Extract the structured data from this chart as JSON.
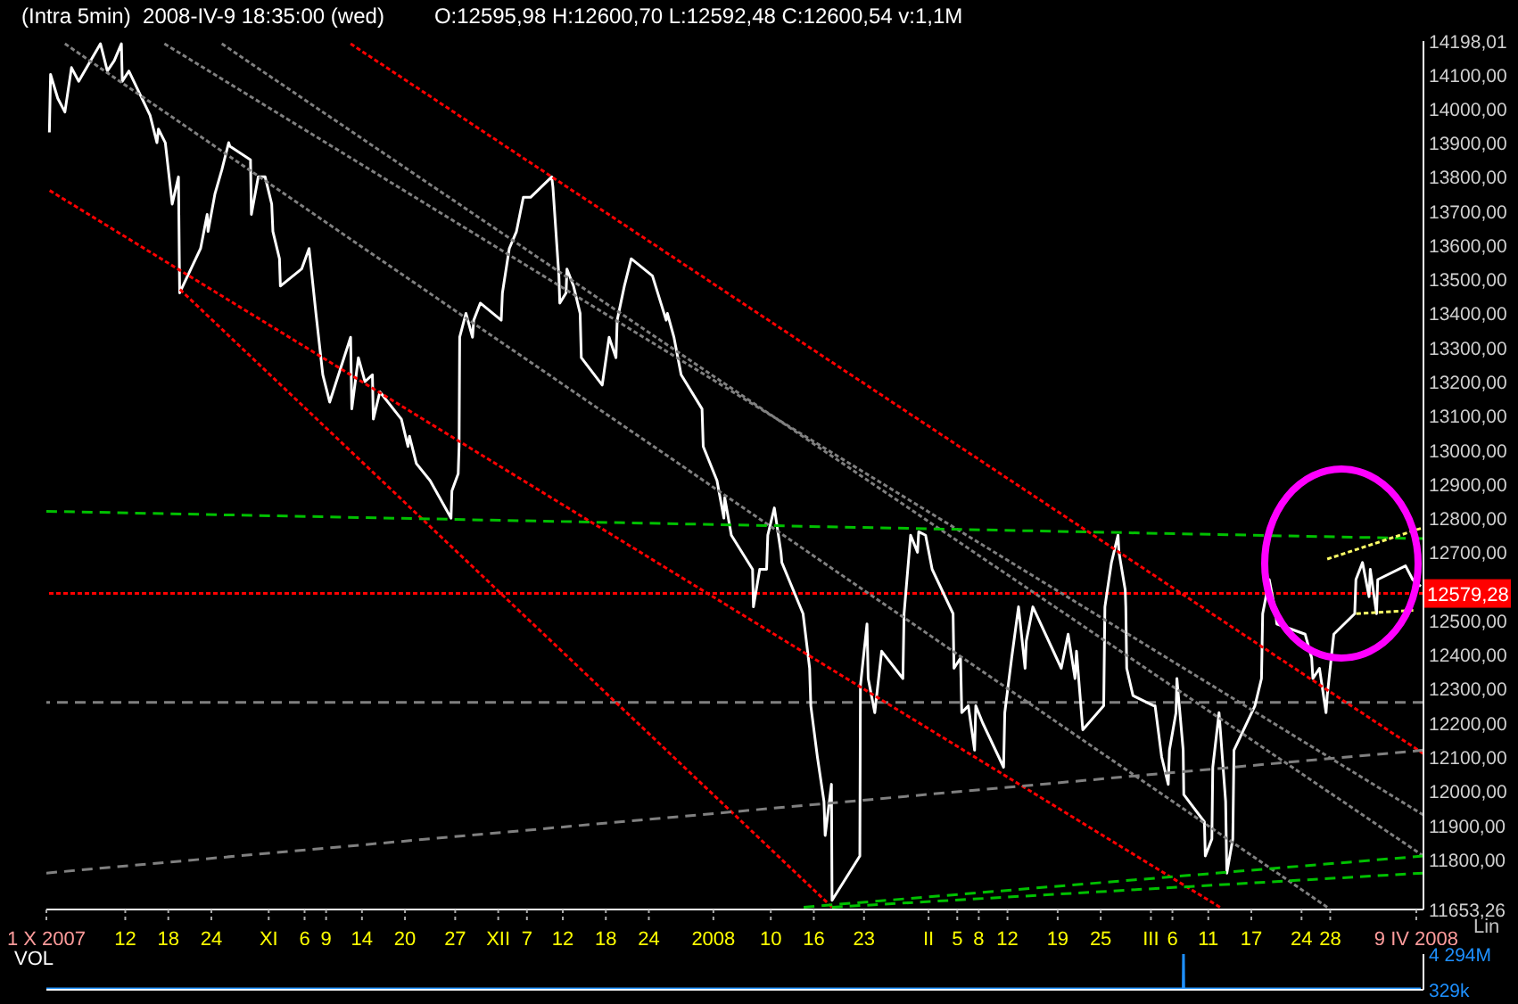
{
  "chart_data": [
    {
      "type": "line",
      "title": "(Intra 5min)  2008-IV-9 18:35:00 (wed)",
      "subtitle": "O:12595,98 H:12600,70 L:12592,48 C:12600,54 v:1,1M",
      "annotations": [
        "Lin"
      ],
      "xlim": [
        "2007-10-01",
        "2008-04-10"
      ],
      "ylim": [
        11653.26,
        14198.01
      ],
      "xticks": [
        {
          "value": "2007-10-01",
          "label": "1 X 2007"
        },
        {
          "value": "2007-10-12",
          "label": "12"
        },
        {
          "value": "2007-10-18",
          "label": "18"
        },
        {
          "value": "2007-10-24",
          "label": "24"
        },
        {
          "value": "2007-11-01",
          "label": "XI"
        },
        {
          "value": "2007-11-06",
          "label": "6"
        },
        {
          "value": "2007-11-09",
          "label": "9"
        },
        {
          "value": "2007-11-14",
          "label": "14"
        },
        {
          "value": "2007-11-20",
          "label": "20"
        },
        {
          "value": "2007-11-27",
          "label": "27"
        },
        {
          "value": "2007-12-03",
          "label": "XII"
        },
        {
          "value": "2007-12-07",
          "label": "7"
        },
        {
          "value": "2007-12-12",
          "label": "12"
        },
        {
          "value": "2007-12-18",
          "label": "18"
        },
        {
          "value": "2007-12-24",
          "label": "24"
        },
        {
          "value": "2008-01-02",
          "label": "2008"
        },
        {
          "value": "2008-01-10",
          "label": "10"
        },
        {
          "value": "2008-01-16",
          "label": "16"
        },
        {
          "value": "2008-01-23",
          "label": "23"
        },
        {
          "value": "2008-02-01",
          "label": "II"
        },
        {
          "value": "2008-02-05",
          "label": "5"
        },
        {
          "value": "2008-02-08",
          "label": "8"
        },
        {
          "value": "2008-02-12",
          "label": "12"
        },
        {
          "value": "2008-02-19",
          "label": "19"
        },
        {
          "value": "2008-02-25",
          "label": "25"
        },
        {
          "value": "2008-03-03",
          "label": "III"
        },
        {
          "value": "2008-03-06",
          "label": "6"
        },
        {
          "value": "2008-03-11",
          "label": "11"
        },
        {
          "value": "2008-03-17",
          "label": "17"
        },
        {
          "value": "2008-03-24",
          "label": "24"
        },
        {
          "value": "2008-03-28",
          "label": "28"
        },
        {
          "value": "2008-04-09",
          "label": "9 IV 2008"
        }
      ],
      "yticks": [
        {
          "value": 14198.01,
          "label": "14198,01"
        },
        {
          "value": 14100,
          "label": "14100,00"
        },
        {
          "value": 14000,
          "label": "14000,00"
        },
        {
          "value": 13900,
          "label": "13900,00"
        },
        {
          "value": 13800,
          "label": "13800,00"
        },
        {
          "value": 13700,
          "label": "13700,00"
        },
        {
          "value": 13600,
          "label": "13600,00"
        },
        {
          "value": 13500,
          "label": "13500,00"
        },
        {
          "value": 13400,
          "label": "13400,00"
        },
        {
          "value": 13300,
          "label": "13300,00"
        },
        {
          "value": 13200,
          "label": "13200,00"
        },
        {
          "value": 13100,
          "label": "13100,00"
        },
        {
          "value": 13000,
          "label": "13000,00"
        },
        {
          "value": 12900,
          "label": "12900,00"
        },
        {
          "value": 12800,
          "label": "12800,00"
        },
        {
          "value": 12700,
          "label": "12700,00"
        },
        {
          "value": 12500,
          "label": "12500,00"
        },
        {
          "value": 12400,
          "label": "12400,00"
        },
        {
          "value": 12300,
          "label": "12300,00"
        },
        {
          "value": 12200,
          "label": "12200,00"
        },
        {
          "value": 12100,
          "label": "12100,00"
        },
        {
          "value": 12000,
          "label": "12000,00"
        },
        {
          "value": 11900,
          "label": "11900,00"
        },
        {
          "value": 11800,
          "label": "11800,00"
        },
        {
          "value": 11653.26,
          "label": "11653,26"
        }
      ],
      "ref_lines": [
        {
          "axis": "y",
          "value": 12579.28,
          "label": "12579,28",
          "color": "#ff0000",
          "line_style": "dotted"
        },
        {
          "axis": "y",
          "value": 12260,
          "color": "#808080",
          "line_style": "dashed"
        }
      ],
      "series": [
        {
          "color": "#ffffff",
          "line_style": "solid",
          "x": [
            "2007-10-01T10:00",
            "2007-10-01T14:00",
            "2007-10-02T14:00",
            "2007-10-03T14:00",
            "2007-10-04T12:00",
            "2007-10-05T12:00",
            "2007-10-08T13:00",
            "2007-10-09T12:00",
            "2007-10-10T11:00",
            "2007-10-11T11:00",
            "2007-10-11T14:00",
            "2007-10-12T12:00",
            "2007-10-15T11:00",
            "2007-10-16T10:00",
            "2007-10-16T15:00",
            "2007-10-17T14:00",
            "2007-10-18T13:00",
            "2007-10-19T10:00",
            "2007-10-19T14:00",
            "2007-10-22T12:00",
            "2007-10-23T10:00",
            "2007-10-23T13:00",
            "2007-10-24T12:00",
            "2007-10-25T11:00",
            "2007-10-26T10:00",
            "2007-10-26T14:00",
            "2007-10-29T11:00",
            "2007-10-29T14:00",
            "2007-10-30T13:00",
            "2007-10-31T12:00",
            "2007-11-01T10:00",
            "2007-11-01T14:00",
            "2007-11-02T12:00",
            "2007-11-02T15:00",
            "2007-11-05T14:00",
            "2007-11-06T15:00",
            "2007-11-07T14:00",
            "2007-11-08T13:00",
            "2007-11-09T12:00",
            "2007-11-12T10:00",
            "2007-11-12T14:00",
            "2007-11-13T12:00",
            "2007-11-14T10:00",
            "2007-11-15T11:00",
            "2007-11-15T14:00",
            "2007-11-16T12:00",
            "2007-11-19T12:00",
            "2007-11-20T10:00",
            "2007-11-20T15:00",
            "2007-11-21T14:00",
            "2007-11-23T12:00",
            "2007-11-26T10:00",
            "2007-11-26T13:00",
            "2007-11-27T10:00",
            "2007-11-27T13:00",
            "2007-11-27T15:00",
            "2007-11-28T12:00",
            "2007-11-29T10:00",
            "2007-11-29T14:00",
            "2007-11-30T12:00",
            "2007-12-03T10:00",
            "2007-12-03T14:00",
            "2007-12-04T13:00",
            "2007-12-05T13:00",
            "2007-12-06T12:00",
            "2007-12-07T12:00",
            "2007-12-10T11:00",
            "2007-12-10T15:00",
            "2007-12-11T11:00",
            "2007-12-11T14:00",
            "2007-12-12T11:00",
            "2007-12-12T14:00",
            "2007-12-13T12:00",
            "2007-12-14T10:00",
            "2007-12-14T14:00",
            "2007-12-17T12:00",
            "2007-12-18T11:00",
            "2007-12-19T10:00",
            "2007-12-19T14:00",
            "2007-12-20T14:00",
            "2007-12-21T13:00",
            "2007-12-24T12:00",
            "2007-12-26T10:00",
            "2007-12-26T14:00",
            "2007-12-27T12:00",
            "2007-12-28T12:00",
            "2007-12-31T10:00",
            "2007-12-31T14:00",
            "2008-01-02T12:00",
            "2008-01-03T11:00",
            "2008-01-03T14:00",
            "2008-01-04T12:00",
            "2008-01-07T11:00",
            "2008-01-07T14:00",
            "2008-01-08T11:00",
            "2008-01-09T10:00",
            "2008-01-09T14:00",
            "2008-01-10T12:00",
            "2008-01-11T10:00",
            "2008-01-11T13:00",
            "2008-01-14T12:00",
            "2008-01-15T10:00",
            "2008-01-15T14:00",
            "2008-01-16T12:00",
            "2008-01-17T10:00",
            "2008-01-17T14:00",
            "2008-01-18T11:00",
            "2008-01-18T13:00",
            "2008-01-22T10:00",
            "2008-01-22T12:00",
            "2008-01-23T10:00",
            "2008-01-23T14:00",
            "2008-01-24T12:00",
            "2008-01-25T11:00",
            "2008-01-28T10:00",
            "2008-01-28T14:00",
            "2008-01-29T12:00",
            "2008-01-30T11:00",
            "2008-01-30T15:00",
            "2008-01-31T14:00",
            "2008-02-01T12:00",
            "2008-02-04T10:00",
            "2008-02-04T13:00",
            "2008-02-05T11:00",
            "2008-02-05T15:00",
            "2008-02-06T13:00",
            "2008-02-07T10:00",
            "2008-02-07T14:00",
            "2008-02-08T13:00",
            "2008-02-11T11:00",
            "2008-02-11T15:00",
            "2008-02-12T14:00",
            "2008-02-13T13:00",
            "2008-02-14T11:00",
            "2008-02-14T15:00",
            "2008-02-15T13:00",
            "2008-02-19T12:00",
            "2008-02-20T11:00",
            "2008-02-21T10:00",
            "2008-02-21T15:00",
            "2008-02-22T12:00",
            "2008-02-25T10:00",
            "2008-02-25T14:00",
            "2008-02-26T12:00",
            "2008-02-27T10:00",
            "2008-02-27T13:00",
            "2008-02-28T10:00",
            "2008-02-28T12:00",
            "2008-02-28T15:00",
            "2008-02-29T12:00",
            "2008-03-03T10:00",
            "2008-03-03T14:00",
            "2008-03-04T12:00",
            "2008-03-05T10:00",
            "2008-03-05T14:00",
            "2008-03-06T12:00",
            "2008-03-06T15:00",
            "2008-03-07T12:00",
            "2008-03-07T14:00",
            "2008-03-10T11:00",
            "2008-03-10T14:00",
            "2008-03-11T12:00",
            "2008-03-11T15:00",
            "2008-03-12T12:00",
            "2008-03-13T10:00",
            "2008-03-13T14:00",
            "2008-03-14T10:00",
            "2008-03-14T14:00",
            "2008-03-17T12:00",
            "2008-03-18T10:00",
            "2008-03-18T14:00",
            "2008-03-19T12:00",
            "2008-03-20T10:00",
            "2008-03-20T13:00",
            "2008-03-24T12:00",
            "2008-03-25T10:00",
            "2008-03-25T14:00",
            "2008-03-26T12:00",
            "2008-03-27T10:00",
            "2008-03-27T14:00",
            "2008-03-28T12:00",
            "2008-03-31T10:00",
            "2008-03-31T14:00",
            "2008-04-01T12:00",
            "2008-04-02T10:00",
            "2008-04-02T14:00",
            "2008-04-03T11:00",
            "2008-04-03T15:00",
            "2008-04-07T12:00",
            "2008-04-08T12:00",
            "2008-04-09T15:00"
          ],
          "values": [
            13930,
            14100,
            14030,
            13990,
            14120,
            14080,
            14190,
            14110,
            14140,
            14190,
            14080,
            14110,
            13980,
            13900,
            13940,
            13900,
            13720,
            13800,
            13460,
            13590,
            13690,
            13640,
            13750,
            13820,
            13900,
            13890,
            13850,
            13690,
            13800,
            13800,
            13720,
            13640,
            13560,
            13480,
            13530,
            13590,
            13400,
            13220,
            13140,
            13330,
            13120,
            13270,
            13200,
            13220,
            13090,
            13170,
            13090,
            13010,
            13040,
            12960,
            12910,
            12800,
            12880,
            12930,
            13010,
            13330,
            13400,
            13330,
            13380,
            13430,
            13380,
            13460,
            13590,
            13640,
            13740,
            13740,
            13800,
            13770,
            13510,
            13430,
            13460,
            13530,
            13480,
            13400,
            13270,
            13190,
            13330,
            13270,
            13380,
            13480,
            13560,
            13510,
            13380,
            13400,
            13330,
            13220,
            13120,
            13010,
            12910,
            12800,
            12860,
            12750,
            12650,
            12540,
            12650,
            12650,
            12750,
            12830,
            12700,
            12670,
            12520,
            12360,
            12250,
            12100,
            11970,
            11870,
            12020,
            11680,
            11810,
            12310,
            12490,
            12330,
            12230,
            12410,
            12330,
            12520,
            12750,
            12700,
            12760,
            12750,
            12650,
            12520,
            12360,
            12390,
            12230,
            12250,
            12120,
            12250,
            12200,
            12070,
            12230,
            12390,
            12540,
            12360,
            12440,
            12540,
            12360,
            12460,
            12330,
            12410,
            12180,
            12250,
            12540,
            12670,
            12750,
            12700,
            12590,
            12540,
            12360,
            12280,
            12250,
            12250,
            12100,
            12020,
            12120,
            12230,
            12330,
            12120,
            11990,
            11910,
            11810,
            11860,
            12070,
            12230,
            11970,
            11760,
            11860,
            12120,
            12250,
            12330,
            12520,
            12620,
            12520,
            12490,
            12460,
            12390,
            12330,
            12360,
            12230,
            12280,
            12460,
            12520,
            12620,
            12670,
            12570,
            12650,
            12520,
            12620,
            12660,
            12620,
            12600
          ]
        },
        {
          "color": "#ff0000",
          "line_style": "dotted",
          "x": [
            "2007-11-12T10:00",
            "2008-04-10"
          ],
          "values": [
            14190,
            12110
          ]
        },
        {
          "color": "#ff0000",
          "line_style": "dotted",
          "x": [
            "2007-10-01T11:00",
            "2008-03-12T15:00"
          ],
          "values": [
            13760,
            11660
          ]
        },
        {
          "color": "#ff0000",
          "line_style": "dotted",
          "x": [
            "2007-10-19T15:00",
            "2008-01-18T13:00"
          ],
          "values": [
            13470,
            11660
          ]
        },
        {
          "color": "#808080",
          "line_style": "dotted",
          "x": [
            "2007-10-03T14:00",
            "2008-03-27T14:00"
          ],
          "values": [
            14190,
            11660
          ]
        },
        {
          "color": "#808080",
          "line_style": "dotted",
          "x": [
            "2007-10-17T11:00",
            "2008-04-10"
          ],
          "values": [
            14190,
            11930
          ]
        },
        {
          "color": "#808080",
          "line_style": "dotted",
          "x": [
            "2007-10-25T11:00",
            "2008-04-10"
          ],
          "values": [
            14190,
            11810
          ]
        },
        {
          "color": "#00c000",
          "line_style": "dashed",
          "x": [
            "2007-10-01",
            "2008-04-10"
          ],
          "values": [
            12820,
            12740
          ]
        },
        {
          "color": "#808080",
          "line_style": "dashed",
          "x": [
            "2007-10-01",
            "2008-04-10"
          ],
          "values": [
            11760,
            12120
          ]
        },
        {
          "color": "#00c000",
          "line_style": "dashed",
          "x": [
            "2008-01-14T14:00",
            "2008-04-10"
          ],
          "values": [
            11660,
            11810
          ]
        },
        {
          "color": "#00c000",
          "line_style": "dashed",
          "x": [
            "2008-01-18T13:00",
            "2008-04-10"
          ],
          "values": [
            11660,
            11760
          ]
        },
        {
          "color": "#ffff66",
          "line_style": "dotted",
          "x": [
            "2008-03-27T14:00",
            "2008-04-09T15:00"
          ],
          "values": [
            12680,
            12770
          ]
        },
        {
          "color": "#ffff66",
          "line_style": "dotted",
          "x": [
            "2008-03-31T15:00",
            "2008-04-08T14:00"
          ],
          "values": [
            12520,
            12530
          ]
        }
      ]
    },
    {
      "type": "line",
      "title": "VOL",
      "tick_labels": "y",
      "xlim": [
        "2007-10-01",
        "2008-04-10"
      ],
      "ylim": [
        329000,
        4294000000
      ],
      "yticks": [
        {
          "value": 4294000000,
          "label": "4 294M"
        },
        {
          "value": 329000,
          "label": "329k"
        }
      ],
      "series": [
        {
          "color": "#1e90ff",
          "x": [
            "2007-10-01",
            "2007-11-01",
            "2007-12-03",
            "2008-01-02",
            "2008-02-01",
            "2008-03-07T12:00",
            "2008-03-07T13:00",
            "2008-03-07T14:00",
            "2008-03-20",
            "2008-04-09T15:00"
          ],
          "values": [
            100000000,
            100000000,
            100000000,
            100000000,
            100000000,
            100000000,
            4294000000,
            100000000,
            100000000,
            100000000
          ]
        }
      ]
    }
  ]
}
